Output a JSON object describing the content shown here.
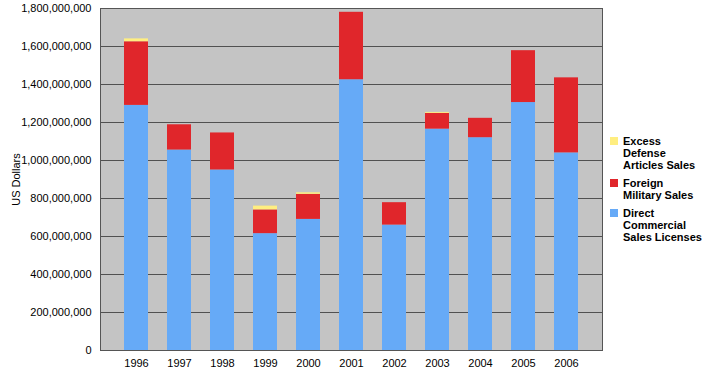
{
  "chart_data": {
    "type": "bar",
    "stacked": true,
    "grid": true,
    "legend": "right",
    "y_label": "US Dollars",
    "categories": [
      "1996",
      "1997",
      "1998",
      "1999",
      "2000",
      "2001",
      "2002",
      "2003",
      "2004",
      "2005",
      "2006"
    ],
    "series": [
      {
        "name": "Direct Commercial Sales Licenses",
        "color": "#66aaf7",
        "values": [
          1290000000,
          1055000000,
          950000000,
          615000000,
          690000000,
          1425000000,
          660000000,
          1165000000,
          1120000000,
          1305000000,
          1040000000
        ]
      },
      {
        "name": "Foreign Military Sales",
        "color": "#e0262b",
        "values": [
          335000000,
          133000000,
          195000000,
          125000000,
          132000000,
          355000000,
          118000000,
          83000000,
          102000000,
          273000000,
          395000000
        ]
      },
      {
        "name": "Excess Defense Articles Sales",
        "color": "#ffee80",
        "values": [
          15000000,
          0,
          0,
          20000000,
          8000000,
          0,
          0,
          5000000,
          0,
          0,
          0
        ]
      }
    ],
    "ylim": [
      0,
      1800000000
    ],
    "yticks": [
      0,
      {
        "value": 200000000,
        "label": "200,000,000"
      },
      {
        "value": 400000000,
        "label": "400,000,000"
      },
      {
        "value": 600000000,
        "label": "600,000,000"
      },
      {
        "value": 800000000,
        "label": "800,000,000"
      },
      {
        "value": 1000000000,
        "label": "1,000,000,000"
      },
      {
        "value": 1200000000,
        "label": "1,200,000,000"
      },
      {
        "value": 1400000000,
        "label": "1,400,000,000"
      },
      {
        "value": 1600000000,
        "label": "1,600,000,000"
      },
      {
        "value": 1800000000,
        "label": "1,800,000,000"
      }
    ]
  }
}
